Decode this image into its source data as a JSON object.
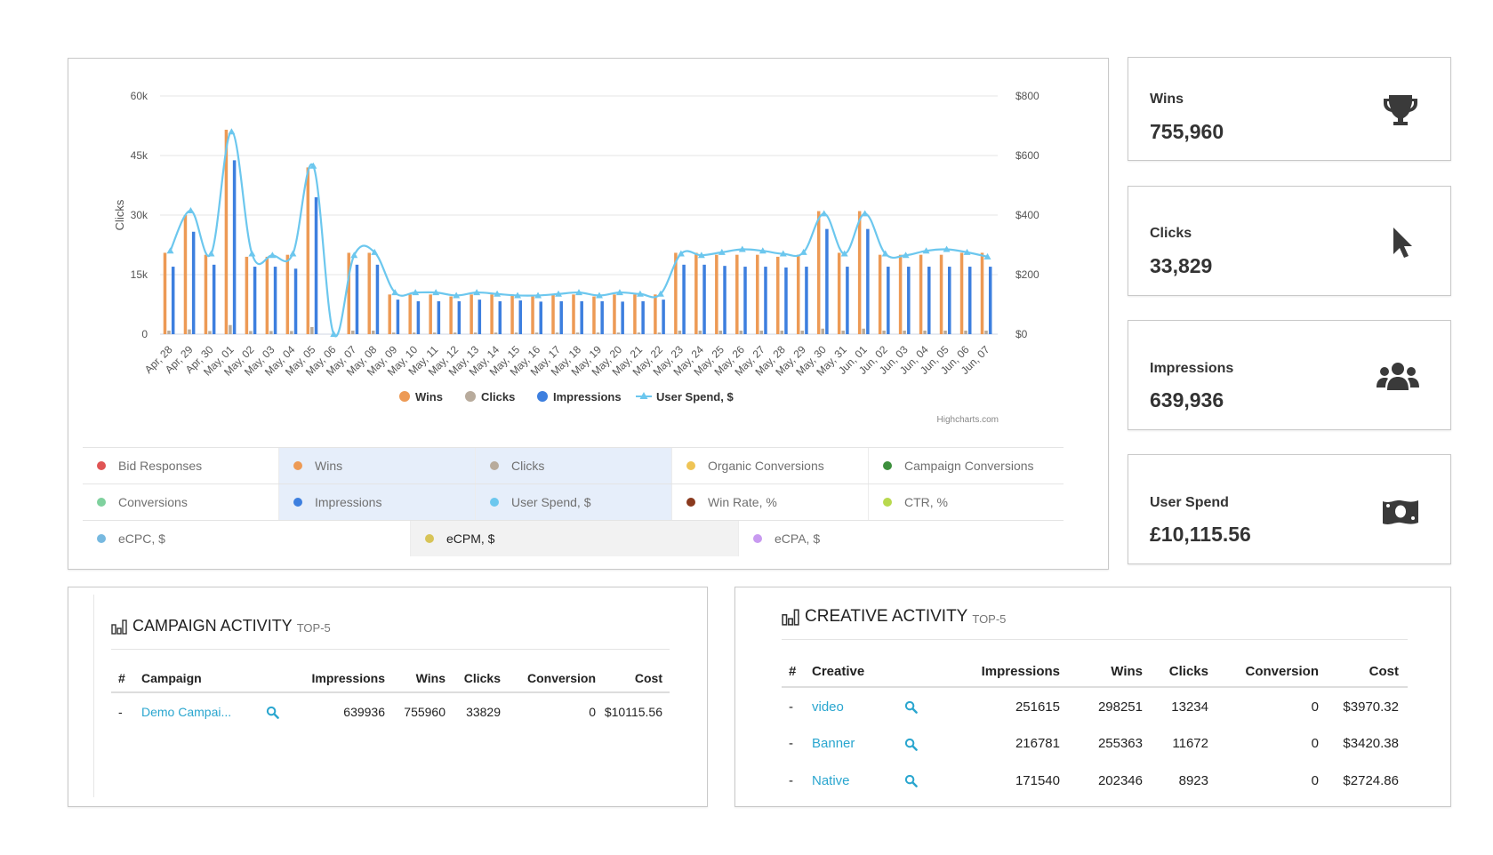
{
  "chart_data": {
    "type": "bar",
    "categories": [
      "Apr, 28",
      "Apr, 29",
      "Apr, 30",
      "May, 01",
      "May, 02",
      "May, 03",
      "May, 04",
      "May, 05",
      "May, 06",
      "May, 07",
      "May, 08",
      "May, 09",
      "May, 10",
      "May, 11",
      "May, 12",
      "May, 13",
      "May, 14",
      "May, 15",
      "May, 16",
      "May, 17",
      "May, 18",
      "May, 19",
      "May, 20",
      "May, 21",
      "May, 22",
      "May, 23",
      "May, 24",
      "May, 25",
      "May, 26",
      "May, 27",
      "May, 28",
      "May, 29",
      "May, 30",
      "May, 31",
      "Jun, 01",
      "Jun, 02",
      "Jun, 03",
      "Jun, 04",
      "Jun, 05",
      "Jun, 06",
      "Jun, 07"
    ],
    "series": [
      {
        "name": "Wins",
        "type": "bar",
        "axis": "left",
        "color": "#ed9a55",
        "values": [
          20500,
          30000,
          20000,
          51500,
          19500,
          19500,
          20000,
          42000,
          0,
          20500,
          20500,
          10000,
          10000,
          10000,
          9500,
          10000,
          10000,
          10000,
          9500,
          10000,
          10000,
          9500,
          10000,
          10000,
          10000,
          20500,
          20500,
          20000,
          20000,
          20000,
          19500,
          20000,
          31000,
          20500,
          31000,
          20000,
          20000,
          20000,
          20000,
          20500,
          20500
        ]
      },
      {
        "name": "Clicks",
        "type": "bar",
        "axis": "left",
        "color": "#b8ab9c",
        "values": [
          900,
          1200,
          800,
          2300,
          800,
          800,
          800,
          1800,
          0,
          900,
          900,
          400,
          400,
          400,
          400,
          400,
          400,
          400,
          400,
          400,
          400,
          400,
          400,
          400,
          400,
          900,
          900,
          900,
          900,
          900,
          900,
          900,
          1400,
          900,
          1400,
          900,
          900,
          900,
          900,
          900,
          900
        ]
      },
      {
        "name": "Impressions",
        "type": "bar",
        "axis": "left",
        "color": "#3d7fdf",
        "values": [
          17000,
          25800,
          17500,
          43800,
          17000,
          17000,
          16500,
          34500,
          0,
          17500,
          17500,
          8700,
          8300,
          8300,
          8300,
          8700,
          8300,
          8500,
          8200,
          8300,
          8300,
          8300,
          8200,
          8300,
          8700,
          17500,
          17500,
          17200,
          17000,
          17000,
          16800,
          17000,
          26500,
          17000,
          26500,
          17000,
          17000,
          17000,
          17000,
          17000,
          17000
        ]
      },
      {
        "name": "User Spend, $",
        "type": "line",
        "axis": "right",
        "color": "#6cc7ee",
        "values": [
          280,
          415,
          270,
          680,
          270,
          265,
          270,
          565,
          0,
          265,
          275,
          140,
          140,
          140,
          130,
          140,
          135,
          130,
          130,
          135,
          140,
          130,
          140,
          135,
          135,
          270,
          265,
          275,
          285,
          280,
          270,
          275,
          405,
          270,
          405,
          270,
          265,
          280,
          285,
          275,
          260
        ]
      }
    ],
    "left_axis": {
      "title": "Clicks",
      "ticks": [
        "0",
        "15k",
        "30k",
        "45k",
        "60k"
      ],
      "range": [
        0,
        60000
      ]
    },
    "right_axis": {
      "ticks": [
        "$0",
        "$200",
        "$400",
        "$600",
        "$800"
      ],
      "range": [
        0,
        800
      ]
    },
    "legend": [
      "Wins",
      "Clicks",
      "Impressions",
      "User Spend, $"
    ],
    "credit": "Highcharts.com"
  },
  "metric_filters": {
    "row1": [
      {
        "label": "Bid Responses",
        "color": "#e05454",
        "active": false
      },
      {
        "label": "Wins",
        "color": "#ed9a55",
        "active": true
      },
      {
        "label": "Clicks",
        "color": "#b8ab9c",
        "active": true
      },
      {
        "label": "Organic Conversions",
        "color": "#efc455",
        "active": false
      },
      {
        "label": "Campaign Conversions",
        "color": "#3d8f3d",
        "active": false
      }
    ],
    "row2": [
      {
        "label": "Conversions",
        "color": "#7fd19e",
        "active": false
      },
      {
        "label": "Impressions",
        "color": "#3d7fdf",
        "active": true
      },
      {
        "label": "User Spend, $",
        "color": "#6cc7ee",
        "active": true
      },
      {
        "label": "Win Rate, %",
        "color": "#8a3a1e",
        "active": false
      },
      {
        "label": "CTR, %",
        "color": "#b8d94e",
        "active": false
      }
    ],
    "row3": [
      {
        "label": "eCPC, $",
        "color": "#77b9e0",
        "active": false
      },
      {
        "label": "eCPM, $",
        "color": "#d8c457",
        "active": true
      },
      {
        "label": "eCPA, $",
        "color": "#c89af0",
        "active": false
      }
    ]
  },
  "stats": {
    "wins": {
      "label": "Wins",
      "value": "755,960",
      "icon": "trophy-icon"
    },
    "clicks": {
      "label": "Clicks",
      "value": "33,829",
      "icon": "cursor-icon"
    },
    "impressions": {
      "label": "Impressions",
      "value": "639,936",
      "icon": "users-icon"
    },
    "spend": {
      "label": "User Spend",
      "value": "£10,115.56",
      "icon": "money-icon"
    }
  },
  "campaign_activity": {
    "title": "CAMPAIGN ACTIVITY",
    "subtitle": "TOP-5",
    "columns": [
      "#",
      "Campaign",
      "Impressions",
      "Wins",
      "Clicks",
      "Conversion",
      "Cost"
    ],
    "rows": [
      {
        "num": "-",
        "name": "Demo Campai...",
        "impressions": "639936",
        "wins": "755960",
        "clicks": "33829",
        "conversion": "0",
        "cost": "$10115.56"
      }
    ]
  },
  "creative_activity": {
    "title": "CREATIVE ACTIVITY",
    "subtitle": "TOP-5",
    "columns": [
      "#",
      "Creative",
      "Impressions",
      "Wins",
      "Clicks",
      "Conversion",
      "Cost"
    ],
    "rows": [
      {
        "num": "-",
        "name": "video",
        "impressions": "251615",
        "wins": "298251",
        "clicks": "13234",
        "conversion": "0",
        "cost": "$3970.32"
      },
      {
        "num": "-",
        "name": "Banner",
        "impressions": "216781",
        "wins": "255363",
        "clicks": "11672",
        "conversion": "0",
        "cost": "$3420.38"
      },
      {
        "num": "-",
        "name": "Native",
        "impressions": "171540",
        "wins": "202346",
        "clicks": "8923",
        "conversion": "0",
        "cost": "$2724.86"
      }
    ]
  }
}
